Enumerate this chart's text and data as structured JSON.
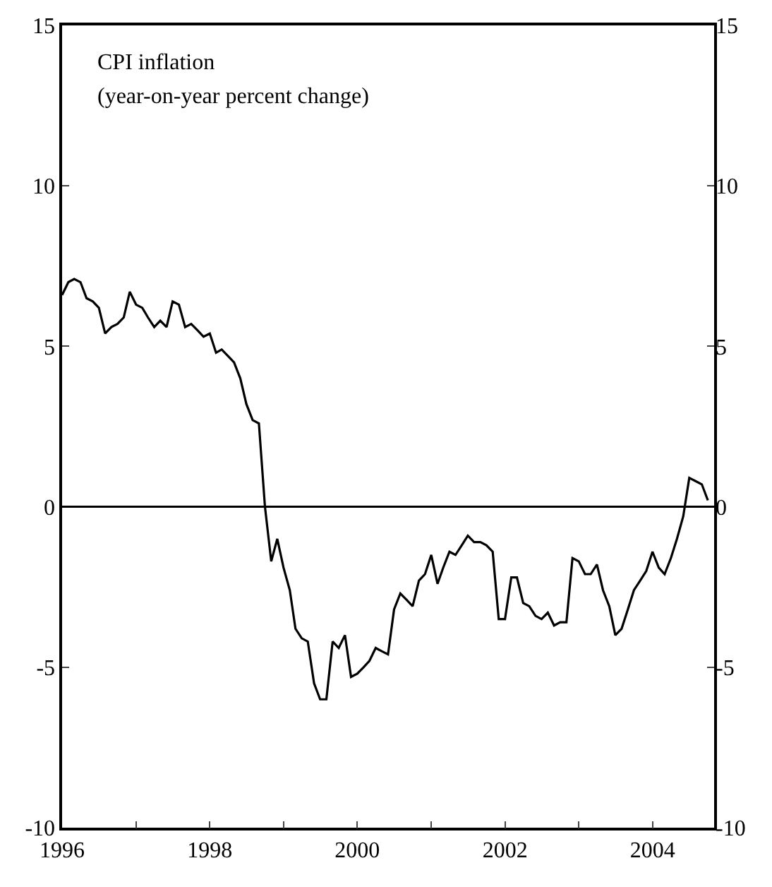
{
  "chart_data": {
    "type": "line",
    "title": "CPI inflation",
    "subtitle": "(year-on-year percent change)",
    "x": [
      "1996-01",
      "1996-02",
      "1996-03",
      "1996-04",
      "1996-05",
      "1996-06",
      "1996-07",
      "1996-08",
      "1996-09",
      "1996-10",
      "1996-11",
      "1996-12",
      "1997-01",
      "1997-02",
      "1997-03",
      "1997-04",
      "1997-05",
      "1997-06",
      "1997-07",
      "1997-08",
      "1997-09",
      "1997-10",
      "1997-11",
      "1997-12",
      "1998-01",
      "1998-02",
      "1998-03",
      "1998-04",
      "1998-05",
      "1998-06",
      "1998-07",
      "1998-08",
      "1998-09",
      "1998-10",
      "1998-11",
      "1998-12",
      "1999-01",
      "1999-02",
      "1999-03",
      "1999-04",
      "1999-05",
      "1999-06",
      "1999-07",
      "1999-08",
      "1999-09",
      "1999-10",
      "1999-11",
      "1999-12",
      "2000-01",
      "2000-02",
      "2000-03",
      "2000-04",
      "2000-05",
      "2000-06",
      "2000-07",
      "2000-08",
      "2000-09",
      "2000-10",
      "2000-11",
      "2000-12",
      "2001-01",
      "2001-02",
      "2001-03",
      "2001-04",
      "2001-05",
      "2001-06",
      "2001-07",
      "2001-08",
      "2001-09",
      "2001-10",
      "2001-11",
      "2001-12",
      "2002-01",
      "2002-02",
      "2002-03",
      "2002-04",
      "2002-05",
      "2002-06",
      "2002-07",
      "2002-08",
      "2002-09",
      "2002-10",
      "2002-11",
      "2002-12",
      "2003-01",
      "2003-02",
      "2003-03",
      "2003-04",
      "2003-05",
      "2003-06",
      "2003-07",
      "2003-08",
      "2003-09",
      "2003-10",
      "2003-11",
      "2003-12",
      "2004-01",
      "2004-02",
      "2004-03",
      "2004-04",
      "2004-05",
      "2004-06",
      "2004-07",
      "2004-08",
      "2004-09",
      "2004-10"
    ],
    "series": [
      {
        "color": "#000000",
        "values": [
          6.6,
          7.0,
          7.1,
          7.0,
          6.5,
          6.4,
          6.2,
          5.4,
          5.6,
          5.7,
          5.9,
          6.7,
          6.3,
          6.2,
          5.9,
          5.6,
          5.8,
          5.6,
          6.4,
          6.3,
          5.6,
          5.7,
          5.5,
          5.3,
          5.4,
          4.8,
          4.9,
          4.7,
          4.5,
          4.0,
          3.2,
          2.7,
          2.6,
          0.0,
          -1.7,
          -1.0,
          -1.9,
          -2.6,
          -3.8,
          -4.1,
          -4.2,
          -5.5,
          -6.0,
          -6.0,
          -4.2,
          -4.4,
          -4.0,
          -5.3,
          -5.2,
          -5.0,
          -4.8,
          -4.4,
          -4.5,
          -4.6,
          -3.2,
          -2.7,
          -2.9,
          -3.1,
          -2.3,
          -2.1,
          -1.5,
          -2.4,
          -1.9,
          -1.4,
          -1.5,
          -1.2,
          -0.9,
          -1.1,
          -1.1,
          -1.2,
          -1.4,
          -3.5,
          -3.5,
          -2.2,
          -2.2,
          -3.0,
          -3.1,
          -3.4,
          -3.5,
          -3.3,
          -3.7,
          -3.6,
          -3.6,
          -1.6,
          -1.7,
          -2.1,
          -2.1,
          -1.8,
          -2.6,
          -3.1,
          -4.0,
          -3.8,
          -3.2,
          -2.6,
          -2.3,
          -2.0,
          -1.4,
          -1.9,
          -2.1,
          -1.6,
          -1.0,
          -0.3,
          0.9,
          0.8,
          0.7,
          0.2
        ]
      }
    ],
    "xlim": [
      "1996-01",
      "2004-11"
    ],
    "xticks": [
      {
        "value": "1996",
        "label": "1996"
      },
      {
        "value": "1997",
        "label": null
      },
      {
        "value": "1998",
        "label": "1998"
      },
      {
        "value": "1999",
        "label": null
      },
      {
        "value": "2000",
        "label": "2000"
      },
      {
        "value": "2001",
        "label": null
      },
      {
        "value": "2002",
        "label": "2002"
      },
      {
        "value": "2003",
        "label": null
      },
      {
        "value": "2004",
        "label": "2004"
      }
    ],
    "ylim": [
      -10,
      15
    ],
    "yticks": [
      -10,
      -5,
      0,
      5,
      10,
      15
    ],
    "y2lim": [
      -10,
      15
    ],
    "y2ticks": [
      -10,
      -5,
      0,
      5,
      10,
      15
    ],
    "ref_lines": [
      {
        "axis": "y",
        "value": 0,
        "label": null,
        "color": "#000000"
      }
    ],
    "marker": "none",
    "line_style": "solid"
  }
}
